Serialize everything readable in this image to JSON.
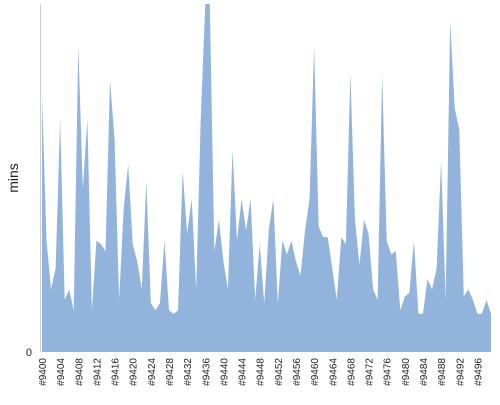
{
  "chart_data": {
    "type": "area",
    "y_label": "mins",
    "color": "#92b3dc",
    "categories": [
      "#9400",
      null,
      null,
      null,
      "#9404",
      null,
      null,
      null,
      "#9408",
      null,
      null,
      null,
      "#9412",
      null,
      null,
      null,
      "#9416",
      null,
      null,
      null,
      "#9420",
      null,
      null,
      null,
      "#9424",
      null,
      null,
      null,
      "#9428",
      null,
      null,
      null,
      "#9432",
      null,
      null,
      null,
      "#9436",
      null,
      null,
      null,
      "#9440",
      null,
      null,
      null,
      "#9444",
      null,
      null,
      null,
      "#9448",
      null,
      null,
      null,
      "#9452",
      null,
      null,
      null,
      "#9456",
      null,
      null,
      null,
      "#9460",
      null,
      null,
      null,
      "#9464",
      null,
      null,
      null,
      "#9468",
      null,
      null,
      null,
      "#9472",
      null,
      null,
      null,
      "#9476",
      null,
      null,
      null,
      "#9480",
      null,
      null,
      null,
      "#9484",
      null,
      null,
      null,
      "#9488",
      null,
      null,
      null,
      "#9492",
      null,
      null,
      null,
      "#9496",
      null,
      null,
      null
    ],
    "values": [
      74,
      32,
      18,
      24,
      67,
      15,
      18,
      12,
      88,
      47,
      67,
      12,
      32,
      31,
      29,
      78,
      61,
      15,
      41,
      54,
      31,
      26,
      18,
      49,
      14,
      12,
      14,
      32,
      12,
      11,
      12,
      52,
      34,
      44,
      18,
      67,
      100,
      100,
      29,
      38,
      26,
      18,
      58,
      32,
      44,
      35,
      44,
      15,
      31,
      14,
      35,
      44,
      14,
      32,
      28,
      32,
      26,
      22,
      35,
      44,
      88,
      36,
      33,
      33,
      24,
      15,
      33,
      31,
      80,
      38,
      25,
      38,
      34,
      18,
      15,
      80,
      32,
      28,
      29,
      12,
      16,
      17,
      32,
      11,
      11,
      21,
      18,
      24,
      55,
      15,
      95,
      70,
      64,
      16,
      18,
      15,
      11,
      11,
      15,
      11
    ],
    "ylim": [
      0,
      100
    ],
    "yticks": [
      0
    ]
  }
}
